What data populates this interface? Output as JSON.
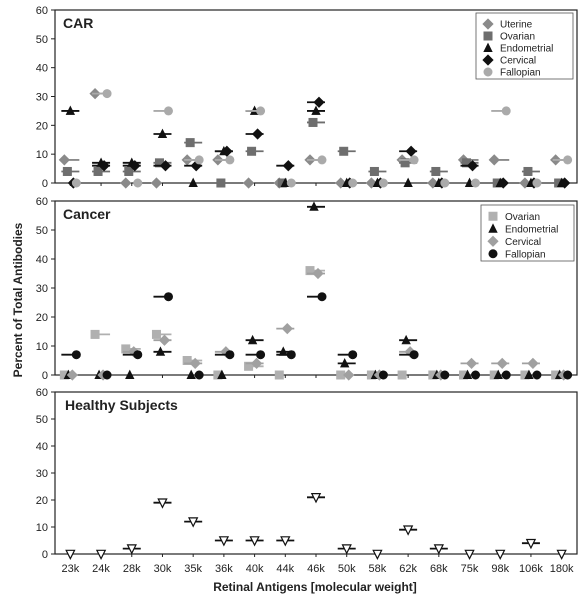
{
  "chart_data": {
    "type": "scatter",
    "ylabel": "Percent of Total Antibodies",
    "xlabel": "Retinal Antigens [molecular weight]",
    "categories": [
      "23k",
      "24k",
      "28k",
      "30k",
      "35k",
      "36k",
      "40k",
      "44k",
      "46k",
      "50k",
      "58k",
      "62k",
      "68k",
      "75k",
      "98k",
      "106k",
      "180k"
    ],
    "ylim": [
      0,
      60
    ],
    "yticks": [
      0,
      10,
      20,
      30,
      40,
      50,
      60
    ],
    "grid": false,
    "panels": [
      {
        "title": "CAR",
        "legend_position": "top-right",
        "series": [
          {
            "name": "Uterine",
            "marker": "diamond",
            "color": "#8a8a8a",
            "values": [
              8,
              31,
              0,
              0,
              8,
              8,
              0,
              0,
              8,
              0,
              0,
              8,
              0,
              8,
              8,
              0,
              8
            ]
          },
          {
            "name": "Ovarian",
            "marker": "square",
            "color": "#6e6e6e",
            "values": [
              4,
              4,
              4,
              7,
              14,
              0,
              11,
              0,
              21,
              11,
              4,
              7,
              4,
              7,
              0,
              4,
              0
            ]
          },
          {
            "name": "Endometrial",
            "marker": "triangle-up",
            "color": "#111111",
            "values": [
              25,
              7,
              7,
              17,
              0,
              11,
              25,
              0,
              25,
              0,
              0,
              0,
              0,
              0,
              0,
              0,
              0
            ]
          },
          {
            "name": "Cervical",
            "marker": "diamond",
            "color": "#111111",
            "values": [
              0,
              6,
              6,
              6,
              6,
              11,
              17,
              6,
              28,
              0,
              0,
              11,
              0,
              6,
              0,
              0,
              0
            ]
          },
          {
            "name": "Fallopian",
            "marker": "circle",
            "color": "#aaaaaa",
            "values": [
              0,
              31,
              0,
              25,
              8,
              8,
              25,
              0,
              8,
              0,
              0,
              8,
              0,
              0,
              25,
              0,
              8
            ]
          }
        ]
      },
      {
        "title": "Cancer",
        "legend_position": "top-right",
        "series": [
          {
            "name": "Ovarian",
            "marker": "square",
            "color": "#b0b0b0",
            "values": [
              0,
              14,
              9,
              14,
              5,
              0,
              3,
              0,
              36,
              0,
              0,
              0,
              0,
              0,
              0,
              0,
              0
            ]
          },
          {
            "name": "Endometrial",
            "marker": "triangle-up",
            "color": "#111111",
            "values": [
              0,
              0,
              0,
              8,
              0,
              0,
              12,
              8,
              58,
              4,
              0,
              12,
              0,
              0,
              0,
              0,
              0
            ]
          },
          {
            "name": "Cervical",
            "marker": "diamond",
            "color": "#a0a0a0",
            "values": [
              0,
              0,
              8,
              12,
              4,
              8,
              4,
              16,
              35,
              0,
              0,
              8,
              0,
              4,
              4,
              4,
              0
            ]
          },
          {
            "name": "Fallopian",
            "marker": "circle",
            "color": "#111111",
            "values": [
              7,
              0,
              7,
              27,
              0,
              7,
              7,
              7,
              27,
              7,
              0,
              7,
              0,
              0,
              0,
              0,
              0
            ]
          }
        ]
      },
      {
        "title": "Healthy Subjects",
        "series": [
          {
            "marker": "triangle-down",
            "color": "#111111",
            "values": [
              0,
              0,
              2,
              19,
              12,
              5,
              5,
              5,
              21,
              2,
              0,
              9,
              2,
              0,
              0,
              4,
              0
            ]
          }
        ]
      }
    ]
  }
}
